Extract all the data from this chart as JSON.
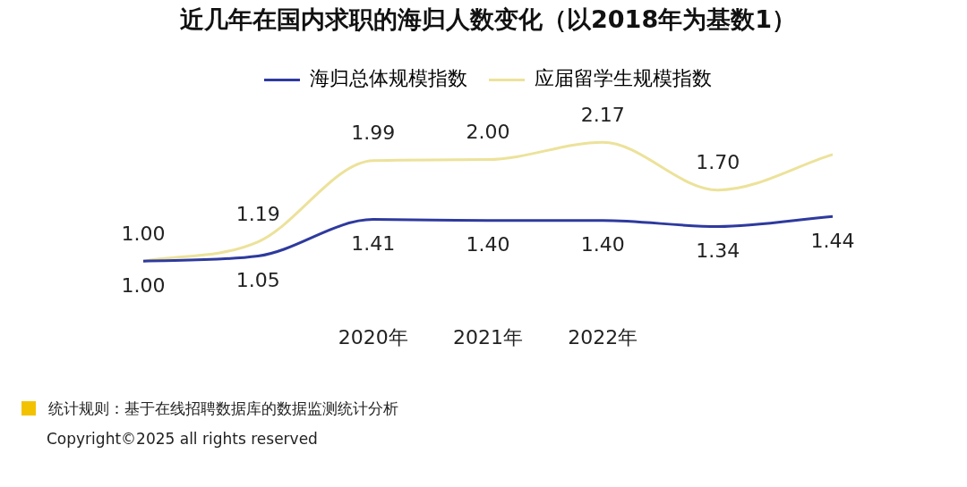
{
  "chart_data": {
    "type": "line",
    "title": "近几年在国内求职的海归人数变化（以2018年为基数1）",
    "categories": [
      null,
      null,
      "2020年",
      "2021年",
      "2022年",
      null,
      null
    ],
    "series": [
      {
        "name": "海归总体规模指数",
        "color": "#2e3a9e",
        "values": [
          1.0,
          1.05,
          1.41,
          1.4,
          1.4,
          1.34,
          1.44
        ],
        "value_labels": [
          "1.00",
          "1.05",
          "1.41",
          "1.40",
          "1.40",
          "1.34",
          "1.44"
        ]
      },
      {
        "name": "应届留学生规模指数",
        "color": "#ece29a",
        "values": [
          1.0,
          1.19,
          1.99,
          2.0,
          2.17,
          1.7,
          2.05
        ],
        "value_labels": [
          "1.00",
          "1.19",
          "1.99",
          "2.00",
          "2.17",
          "1.70",
          null
        ]
      }
    ],
    "legend": "top",
    "grid": false,
    "annotations": [
      "统计规则：基于在线招聘数据库的数据监测统计分析",
      "Copyright©2025 all rights reserved"
    ]
  }
}
